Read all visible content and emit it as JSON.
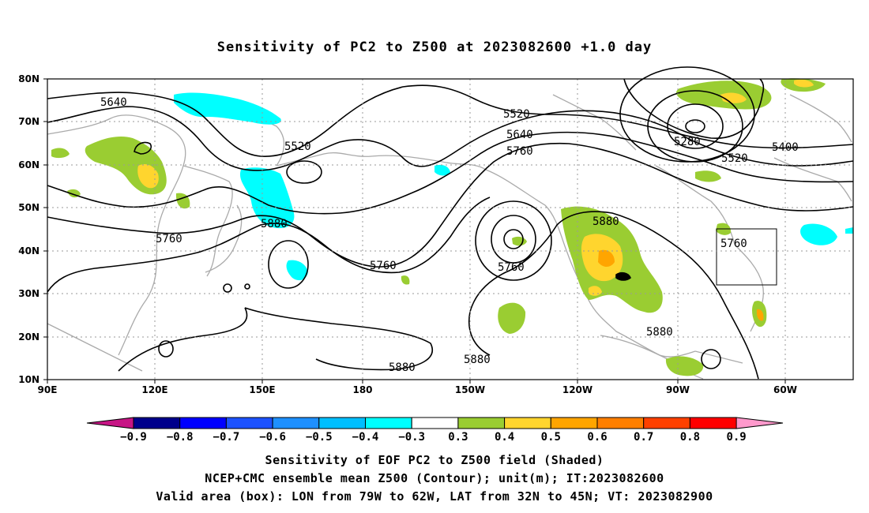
{
  "title": "Sensitivity of PC2 to Z500 at 2023082600 +1.0 day",
  "map": {
    "lat_labels": [
      "80N",
      "70N",
      "60N",
      "50N",
      "40N",
      "30N",
      "20N",
      "10N"
    ],
    "lon_labels": [
      "90E",
      "120E",
      "150E",
      "180",
      "150W",
      "120W",
      "90W",
      "60W"
    ],
    "contour_labels": [
      {
        "text": "5640"
      },
      {
        "text": "5520"
      },
      {
        "text": "5520"
      },
      {
        "text": "5640"
      },
      {
        "text": "5760"
      },
      {
        "text": "5280"
      },
      {
        "text": "5400"
      },
      {
        "text": "5520"
      },
      {
        "text": "5760"
      },
      {
        "text": "5880"
      },
      {
        "text": "5880"
      },
      {
        "text": "5760"
      },
      {
        "text": "5760"
      },
      {
        "text": "5880"
      },
      {
        "text": "5880"
      },
      {
        "text": "5880"
      },
      {
        "text": "5760"
      }
    ],
    "valid_box": {
      "lon_from": "79W",
      "lon_to": "62W",
      "lat_from": "32N",
      "lat_to": "45N"
    }
  },
  "colorbar": {
    "labels": [
      "-0.9",
      "-0.8",
      "-0.7",
      "-0.6",
      "-0.5",
      "-0.4",
      "-0.3",
      "0.3",
      "0.4",
      "0.5",
      "0.6",
      "0.7",
      "0.8",
      "0.9"
    ],
    "colors": [
      "#00008b",
      "#0000ff",
      "#1c52ff",
      "#1e90ff",
      "#00bfff",
      "#00ffff",
      "#ffffff",
      "#9acd32",
      "#ffd52e",
      "#ffa500",
      "#ff7f00",
      "#ff4000",
      "#ff0000"
    ],
    "low_end_color": "#c71585",
    "high_end_color": "#ff99cc"
  },
  "captions": {
    "line1": "Sensitivity of EOF PC2 to Z500 field (Shaded)",
    "line2": "NCEP+CMC ensemble mean Z500 (Contour); unit(m); IT:2023082600",
    "line3": "Valid area (box): LON from 79W to 62W, LAT from 32N to 45N; VT: 2023082900"
  }
}
